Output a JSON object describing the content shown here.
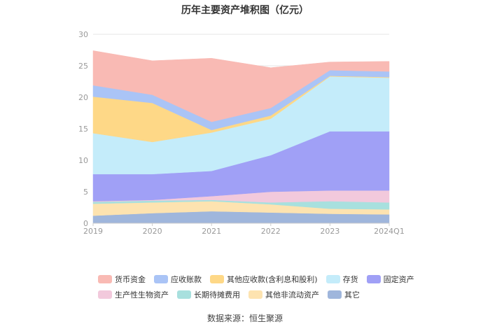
{
  "chart_data": {
    "type": "area",
    "stacked": true,
    "title": "历年主要资产堆积图（亿元）",
    "categories": [
      "2019",
      "2020",
      "2021",
      "2022",
      "2023",
      "2024Q1"
    ],
    "ylim": [
      0,
      30
    ],
    "yticks": [
      0,
      5,
      10,
      15,
      20,
      25,
      30
    ],
    "grid": true,
    "legend_position": "bottom",
    "series": [
      {
        "name": "其它",
        "color": "#9fb6dc",
        "values": [
          1.2,
          1.6,
          1.9,
          1.7,
          1.5,
          1.4
        ]
      },
      {
        "name": "其他非流动资产",
        "color": "#fde3b0",
        "values": [
          1.9,
          1.7,
          1.6,
          1.3,
          0.8,
          0.8
        ]
      },
      {
        "name": "长期待摊费用",
        "color": "#a8e0de",
        "values": [
          0.3,
          0.3,
          0.2,
          0.3,
          1.2,
          1.1
        ]
      },
      {
        "name": "生产性生物资产",
        "color": "#f2c9dc",
        "values": [
          0.1,
          0.1,
          0.6,
          1.7,
          1.7,
          1.9
        ]
      },
      {
        "name": "固定资产",
        "color": "#a0a0f6",
        "values": [
          4.3,
          4.1,
          4.0,
          5.8,
          9.4,
          9.4
        ]
      },
      {
        "name": "存货",
        "color": "#c4ecfa",
        "values": [
          6.5,
          5.1,
          6.1,
          5.8,
          8.7,
          8.5
        ]
      },
      {
        "name": "其他应收款(含利息和股利)",
        "color": "#fed887",
        "values": [
          5.8,
          6.2,
          0.4,
          0.5,
          0.1,
          0.1
        ]
      },
      {
        "name": "应收账款",
        "color": "#aac4f6",
        "values": [
          1.8,
          1.3,
          1.3,
          1.2,
          0.9,
          0.9
        ]
      },
      {
        "name": "货币资金",
        "color": "#f9bab4",
        "values": [
          5.5,
          5.4,
          10.1,
          6.4,
          1.3,
          1.6
        ]
      }
    ]
  },
  "legend": {
    "row1": [
      {
        "label": "货币资金",
        "color": "#f9bab4"
      },
      {
        "label": "应收账款",
        "color": "#aac4f6"
      },
      {
        "label": "其他应收款(含利息和股利)",
        "color": "#fed887"
      },
      {
        "label": "存货",
        "color": "#c4ecfa"
      },
      {
        "label": "固定资产",
        "color": "#a0a0f6"
      }
    ],
    "row2": [
      {
        "label": "生产性生物资产",
        "color": "#f2c9dc"
      },
      {
        "label": "长期待摊费用",
        "color": "#a8e0de"
      },
      {
        "label": "其他非流动资产",
        "color": "#fde3b0"
      },
      {
        "label": "其它",
        "color": "#9fb6dc"
      }
    ]
  },
  "source": "数据来源：恒生聚源"
}
